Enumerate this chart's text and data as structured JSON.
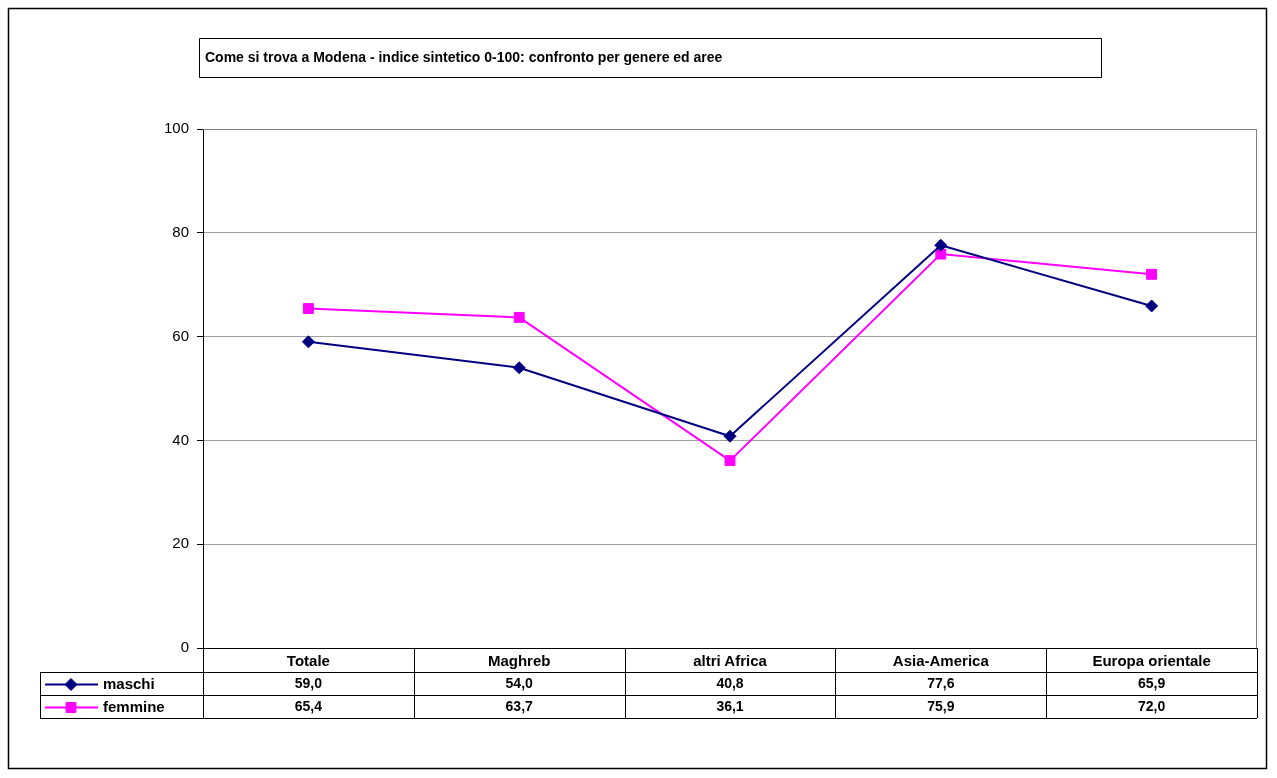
{
  "chart_data": {
    "type": "line",
    "title": "Come si trova a Modena - indice sintetico 0-100: confronto per genere ed aree",
    "categories": [
      "Totale",
      "Maghreb",
      "altri Africa",
      "Asia-America",
      "Europa orientale"
    ],
    "series": [
      {
        "name": "maschi",
        "color": "#000080",
        "marker": "diamond",
        "values": [
          59.0,
          54.0,
          40.8,
          77.6,
          65.9
        ],
        "value_labels": [
          "59,0",
          "54,0",
          "40,8",
          "77,6",
          "65,9"
        ]
      },
      {
        "name": "femmine",
        "color": "#ff00ff",
        "marker": "square",
        "values": [
          65.4,
          63.7,
          36.1,
          75.9,
          72.0
        ],
        "value_labels": [
          "65,4",
          "63,7",
          "36,1",
          "75,9",
          "72,0"
        ]
      }
    ],
    "ylim": [
      0,
      100
    ],
    "yticks": [
      0,
      20,
      40,
      60,
      80,
      100
    ],
    "grid": "y",
    "legend": "bottom",
    "line_style": "solid"
  }
}
